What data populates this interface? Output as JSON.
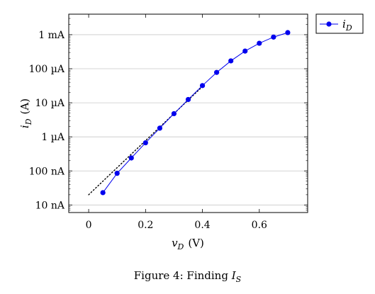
{
  "chart_data": {
    "type": "line",
    "xlabel_var": "v",
    "xlabel_sub": "D",
    "xlabel_unit": "(V)",
    "ylabel_var": "i",
    "ylabel_sub": "D",
    "ylabel_unit": "(A)",
    "xlim": [
      -0.07,
      0.77
    ],
    "ylim": [
      6e-09,
      0.004
    ],
    "yscale": "log",
    "grid": "horizontal-major",
    "legend_placement": "outside-top-right",
    "x_ticks": [
      0,
      0.2,
      0.4,
      0.6
    ],
    "x_tick_labels": [
      "0",
      "0.2",
      "0.4",
      "0.6"
    ],
    "y_ticks": [
      1e-08,
      1e-07,
      1e-06,
      1e-05,
      0.0001,
      0.001
    ],
    "y_tick_labels": [
      "10 nA",
      "100 nA",
      "1 µA",
      "10 µA",
      "100 µA",
      "1 mA"
    ],
    "series": [
      {
        "name_var": "i",
        "name_sub": "D",
        "color": "#0000ee",
        "marker": "circle",
        "x": [
          0.05,
          0.1,
          0.15,
          0.2,
          0.25,
          0.3,
          0.35,
          0.4,
          0.45,
          0.5,
          0.55,
          0.6,
          0.65,
          0.7
        ],
        "y": [
          2.3e-08,
          8.5e-08,
          2.4e-07,
          6.7e-07,
          1.8e-06,
          4.8e-06,
          1.25e-05,
          3.2e-05,
          7.8e-05,
          0.00017,
          0.00033,
          0.00056,
          0.00085,
          0.00115
        ]
      }
    ],
    "fit_line": {
      "style": "dotted",
      "color": "#000000",
      "x": [
        0.0,
        0.4
      ],
      "y": [
        2e-08,
        3e-05
      ]
    }
  },
  "caption": {
    "prefix": "Figure 4: Finding",
    "var": "I",
    "sub": "S"
  }
}
